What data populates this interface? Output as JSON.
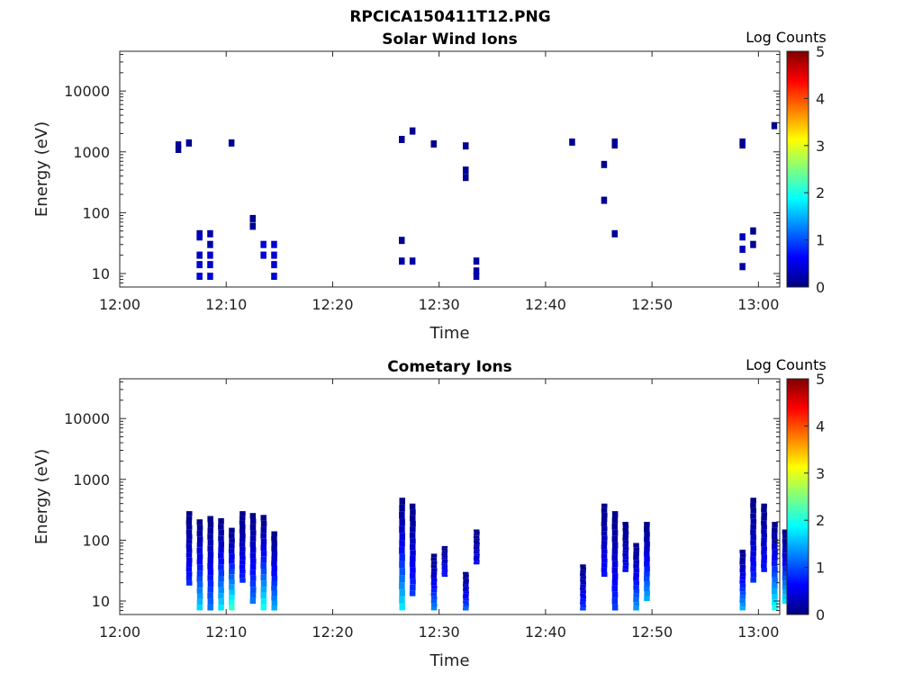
{
  "figure": {
    "title": "RPCICA150411T12.PNG",
    "colors": [
      "#00007f",
      "#0000ff",
      "#007fff",
      "#00ffff",
      "#7fff7f",
      "#ffff00",
      "#ff7f00",
      "#ff0000",
      "#7f0000"
    ]
  },
  "chart_data": [
    {
      "type": "heatmap",
      "title": "Solar Wind Ions",
      "xlabel": "Time",
      "ylabel": "Energy (eV)",
      "xlim": [
        "12:00",
        "13:02"
      ],
      "ylim": [
        6,
        45000
      ],
      "yscale": "log",
      "xticks": [
        "12:00",
        "12:10",
        "12:20",
        "12:30",
        "12:40",
        "12:50",
        "13:00"
      ],
      "yticks": [
        "10",
        "100",
        "1000",
        "10000"
      ],
      "colorbar": {
        "label": "Log Counts",
        "range": [
          0,
          5
        ],
        "ticks": [
          "0",
          "1",
          "2",
          "3",
          "4",
          "5"
        ]
      },
      "cells": [
        [
          "12:05",
          1300,
          0.1
        ],
        [
          "12:05",
          1100,
          0.1
        ],
        [
          "12:06",
          1400,
          0.1
        ],
        [
          "12:10",
          1400,
          0.1
        ],
        [
          "12:07",
          45,
          0.2
        ],
        [
          "12:07",
          40,
          0.3
        ],
        [
          "12:07",
          20,
          0.3
        ],
        [
          "12:07",
          14,
          0.4
        ],
        [
          "12:07",
          9,
          0.4
        ],
        [
          "12:08",
          45,
          0.2
        ],
        [
          "12:08",
          30,
          0.2
        ],
        [
          "12:08",
          20,
          0.4
        ],
        [
          "12:08",
          14,
          0.4
        ],
        [
          "12:08",
          9,
          0.4
        ],
        [
          "12:12",
          80,
          0.1
        ],
        [
          "12:12",
          60,
          0.1
        ],
        [
          "12:13",
          30,
          0.4
        ],
        [
          "12:13",
          20,
          0.4
        ],
        [
          "12:14",
          30,
          0.4
        ],
        [
          "12:14",
          20,
          0.4
        ],
        [
          "12:14",
          14,
          0.4
        ],
        [
          "12:14",
          9,
          0.4
        ],
        [
          "12:26",
          1600,
          0.1
        ],
        [
          "12:27",
          2200,
          0.1
        ],
        [
          "12:26",
          35,
          0.1
        ],
        [
          "12:26",
          16,
          0.2
        ],
        [
          "12:27",
          16,
          0.2
        ],
        [
          "12:29",
          1350,
          0.1
        ],
        [
          "12:32",
          1250,
          0.1
        ],
        [
          "12:32",
          500,
          0.1
        ],
        [
          "12:32",
          380,
          0.1
        ],
        [
          "12:33",
          16,
          0.2
        ],
        [
          "12:33",
          11,
          0.2
        ],
        [
          "12:33",
          9,
          0.2
        ],
        [
          "12:42",
          1450,
          0.1
        ],
        [
          "12:46",
          1300,
          0.1
        ],
        [
          "12:46",
          1450,
          0.1
        ],
        [
          "12:45",
          620,
          0.1
        ],
        [
          "12:45",
          160,
          0.1
        ],
        [
          "12:46",
          45,
          0.1
        ],
        [
          "12:58",
          1450,
          0.1
        ],
        [
          "12:58",
          1300,
          0.1
        ],
        [
          "12:58",
          40,
          0.3
        ],
        [
          "12:58",
          25,
          0.3
        ],
        [
          "12:58",
          13,
          0.2
        ],
        [
          "12:59",
          50,
          0.1
        ],
        [
          "12:59",
          30,
          0.1
        ],
        [
          "13:01",
          2700,
          0.1
        ]
      ]
    },
    {
      "type": "heatmap",
      "title": "Cometary Ions",
      "xlabel": "Time",
      "ylabel": "Energy (eV)",
      "xlim": [
        "12:00",
        "13:02"
      ],
      "ylim": [
        6,
        45000
      ],
      "yscale": "log",
      "xticks": [
        "12:00",
        "12:10",
        "12:20",
        "12:30",
        "12:40",
        "12:50",
        "13:00"
      ],
      "yticks": [
        "10",
        "100",
        "1000",
        "10000"
      ],
      "colorbar": {
        "label": "Log Counts",
        "range": [
          0,
          5
        ],
        "ticks": [
          "0",
          "1",
          "2",
          "3",
          "4",
          "5"
        ]
      },
      "bursts": [
        {
          "t": "12:06",
          "emin": 18,
          "emax": 300,
          "peak": 0.8
        },
        {
          "t": "12:07",
          "emin": 7,
          "emax": 220,
          "peak": 1.7
        },
        {
          "t": "12:08",
          "emin": 7,
          "emax": 250,
          "peak": 1.2
        },
        {
          "t": "12:09",
          "emin": 7,
          "emax": 230,
          "peak": 1.8
        },
        {
          "t": "12:10",
          "emin": 7,
          "emax": 160,
          "peak": 2.2
        },
        {
          "t": "12:11",
          "emin": 20,
          "emax": 300,
          "peak": 0.8
        },
        {
          "t": "12:12",
          "emin": 9,
          "emax": 280,
          "peak": 1.2
        },
        {
          "t": "12:13",
          "emin": 7,
          "emax": 260,
          "peak": 2.0
        },
        {
          "t": "12:14",
          "emin": 7,
          "emax": 140,
          "peak": 1.5
        },
        {
          "t": "12:26",
          "emin": 7,
          "emax": 500,
          "peak": 1.8
        },
        {
          "t": "12:27",
          "emin": 12,
          "emax": 400,
          "peak": 0.9
        },
        {
          "t": "12:29",
          "emin": 7,
          "emax": 60,
          "peak": 1.3
        },
        {
          "t": "12:30",
          "emin": 25,
          "emax": 80,
          "peak": 0.7
        },
        {
          "t": "12:32",
          "emin": 7,
          "emax": 30,
          "peak": 1.1
        },
        {
          "t": "12:33",
          "emin": 40,
          "emax": 150,
          "peak": 0.5
        },
        {
          "t": "12:43",
          "emin": 7,
          "emax": 40,
          "peak": 0.9
        },
        {
          "t": "12:45",
          "emin": 25,
          "emax": 400,
          "peak": 0.7
        },
        {
          "t": "12:46",
          "emin": 7,
          "emax": 300,
          "peak": 0.9
        },
        {
          "t": "12:47",
          "emin": 30,
          "emax": 200,
          "peak": 0.6
        },
        {
          "t": "12:48",
          "emin": 7,
          "emax": 90,
          "peak": 1.4
        },
        {
          "t": "12:49",
          "emin": 10,
          "emax": 200,
          "peak": 1.5
        },
        {
          "t": "12:58",
          "emin": 7,
          "emax": 70,
          "peak": 1.5
        },
        {
          "t": "12:59",
          "emin": 20,
          "emax": 500,
          "peak": 0.8
        },
        {
          "t": "13:00",
          "emin": 30,
          "emax": 400,
          "peak": 0.7
        },
        {
          "t": "13:01",
          "emin": 7,
          "emax": 200,
          "peak": 2.0
        },
        {
          "t": "13:02",
          "emin": 9,
          "emax": 150,
          "peak": 1.8
        }
      ]
    }
  ]
}
